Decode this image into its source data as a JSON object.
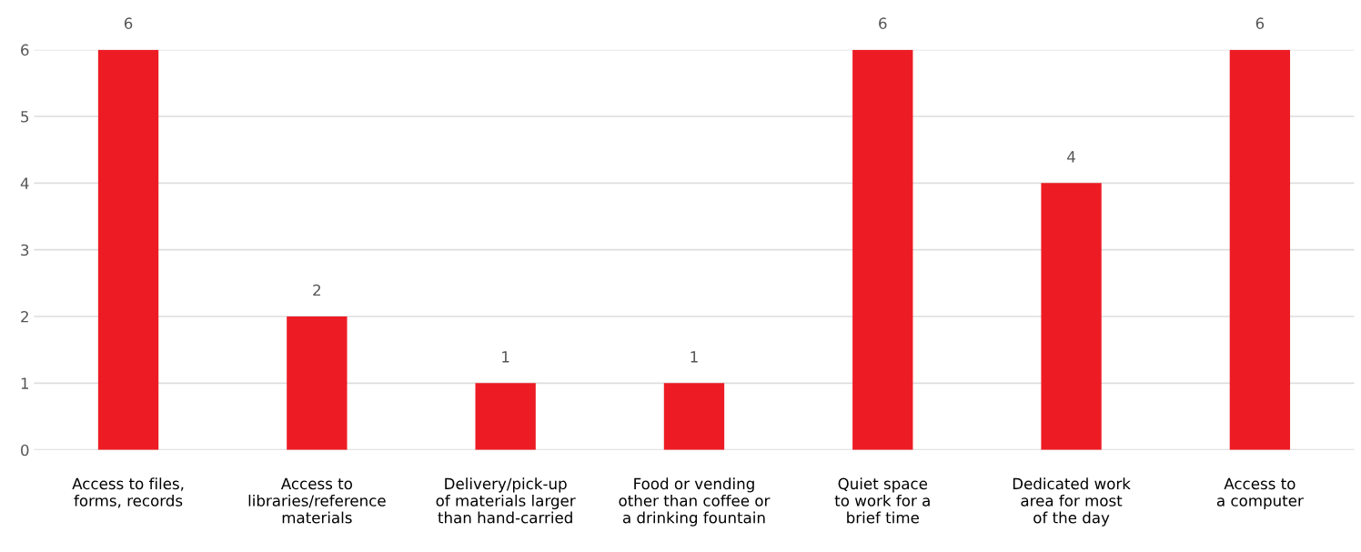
{
  "chart_data": {
    "type": "bar",
    "categories": [
      "Access to files,\nforms, records",
      "Access to\nlibraries/reference\nmaterials",
      "Delivery/pick-up\nof materials larger\nthan hand-carried",
      "Food or vending\nother than coffee or\na drinking fountain",
      "Quiet space\nto work for a\nbrief time",
      "Dedicated work\narea for most\nof the day",
      "Access to\na computer"
    ],
    "values": [
      6,
      2,
      1,
      1,
      6,
      4,
      6
    ],
    "color": "#ed1c24",
    "ylim": [
      0,
      6
    ],
    "yticks": [
      0,
      1,
      2,
      3,
      4,
      5,
      6
    ],
    "grid": "y",
    "data_labels": true
  }
}
